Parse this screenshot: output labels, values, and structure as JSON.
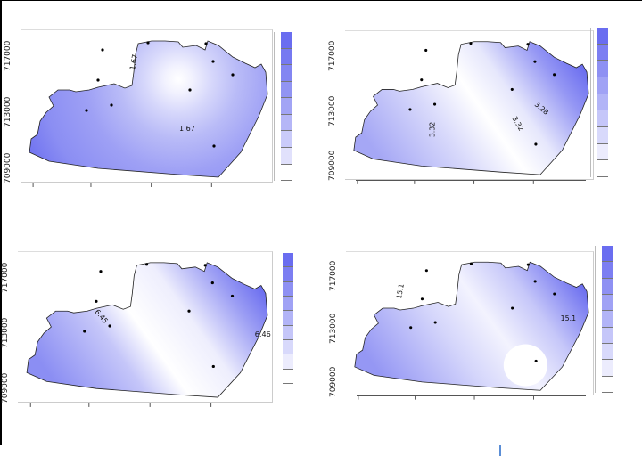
{
  "panels": [
    {
      "y_ticks": [
        "717000",
        "713000",
        "709000"
      ],
      "contour_labels": [
        "1.67",
        "1.67"
      ],
      "palette": [
        "#6a6df0",
        "#7679f1",
        "#8386f2",
        "#9194f3",
        "#a2a4f5",
        "#b5b6f7",
        "#cacbfa",
        "#e1e1fc",
        "#ffffff"
      ]
    },
    {
      "y_ticks": [
        "717000",
        "713000",
        "709000"
      ],
      "contour_labels": [
        "3.32",
        "3.32",
        "3.28"
      ],
      "palette": [
        "#6a6df0",
        "#7c7ef2",
        "#8e90f3",
        "#a0a2f5",
        "#b2b4f7",
        "#c5c6f9",
        "#d8d9fb",
        "#ececfd",
        "#ffffff"
      ]
    },
    {
      "y_ticks": [
        "717000",
        "713000",
        "709000"
      ],
      "contour_labels": [
        "6.45",
        "6.46"
      ],
      "palette": [
        "#6a6df0",
        "#7c7ef2",
        "#8e90f3",
        "#a0a2f5",
        "#b2b4f7",
        "#c5c6f9",
        "#d8d9fb",
        "#ececfd",
        "#ffffff"
      ]
    },
    {
      "y_ticks": [
        "717000",
        "713000",
        "709000"
      ],
      "contour_labels": [
        "15.1",
        "15.1"
      ],
      "palette": [
        "#6a6df0",
        "#7c7ef2",
        "#8e90f3",
        "#a0a2f5",
        "#b2b4f7",
        "#c5c6f9",
        "#d8d9fb",
        "#ececfd",
        "#ffffff"
      ]
    }
  ]
}
